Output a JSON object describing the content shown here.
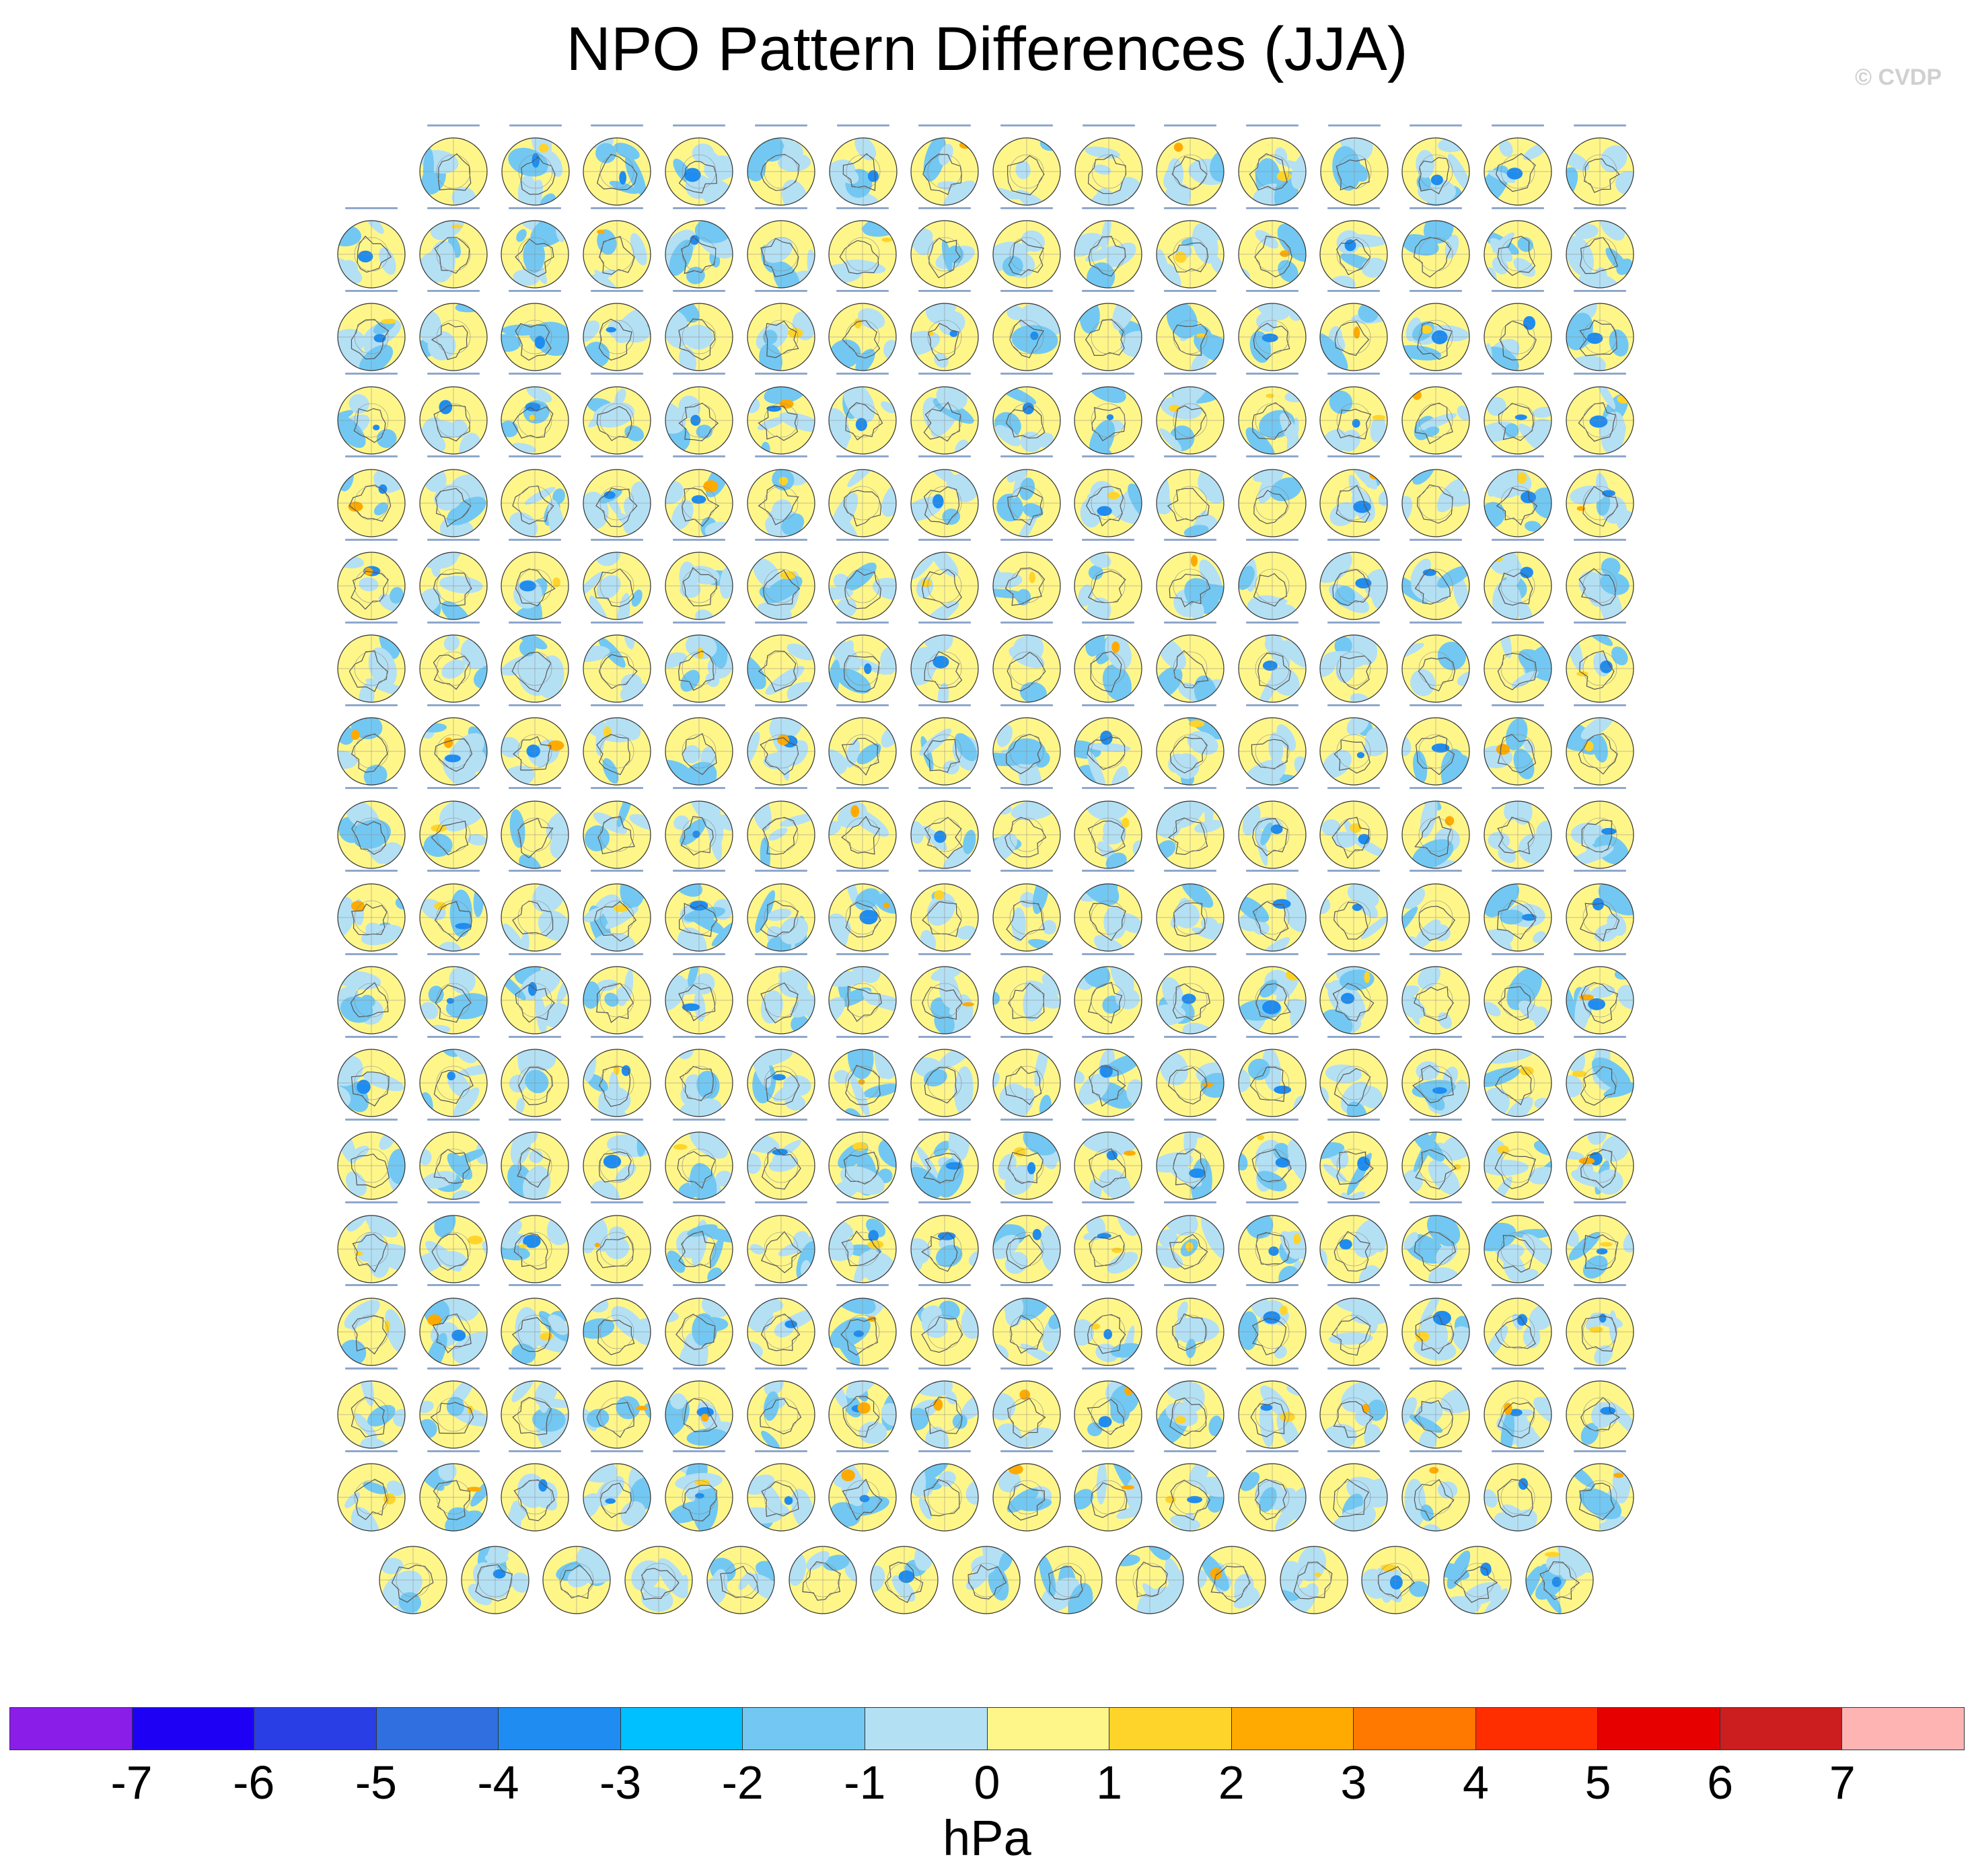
{
  "title": "NPO Pattern Differences (JJA)",
  "copyright": "© CVDP",
  "panel_grid": {
    "rows": [
      15,
      16,
      16,
      16,
      16,
      16,
      16,
      16,
      16,
      16,
      16,
      16,
      16,
      16,
      16,
      16,
      16,
      15
    ],
    "total_panels": 286,
    "panel_type": "polar-stereographic-map",
    "region": "Northern Hemisphere"
  },
  "colorbar": {
    "units": "hPa",
    "tick_labels": [
      "-7",
      "-6",
      "-5",
      "-4",
      "-3",
      "-2",
      "-1",
      "0",
      "1",
      "2",
      "3",
      "4",
      "5",
      "6",
      "7"
    ],
    "colors": [
      "#8a1ee8",
      "#1e00f5",
      "#2a3ee6",
      "#2f6fe0",
      "#1e8cf0",
      "#00c0ff",
      "#72c8f2",
      "#b4e0f4",
      "#fff68a",
      "#ffd42a",
      "#ffaa00",
      "#ff7800",
      "#ff2e00",
      "#e60000",
      "#cc1e1e",
      "#ffb4b4"
    ]
  }
}
